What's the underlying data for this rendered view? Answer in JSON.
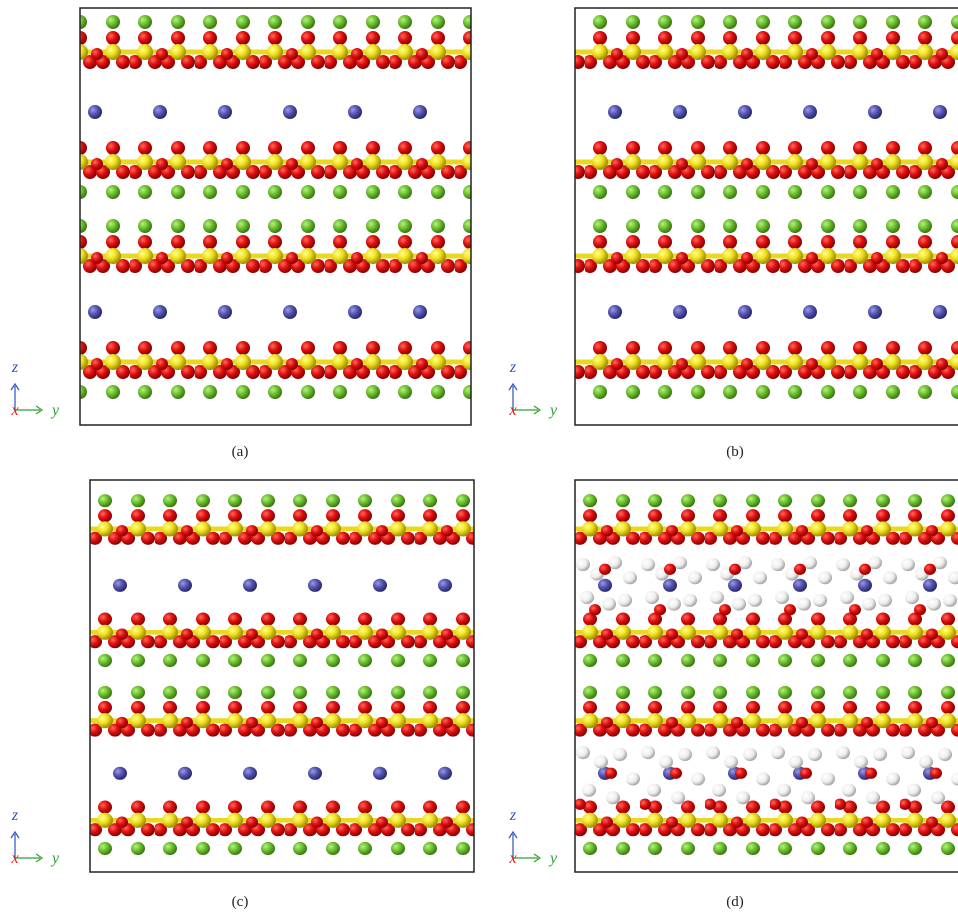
{
  "panels": [
    {
      "label": "(a)",
      "axis_z": "z",
      "axis_x": "x",
      "axis_y": "y"
    },
    {
      "label": "(b)",
      "axis_z": "z",
      "axis_x": "x",
      "axis_y": "y"
    },
    {
      "label": "(c)",
      "axis_z": "z",
      "axis_x": "x",
      "axis_y": "y"
    },
    {
      "label": "(d)",
      "axis_z": "z",
      "axis_x": "x",
      "axis_y": "y"
    }
  ]
}
